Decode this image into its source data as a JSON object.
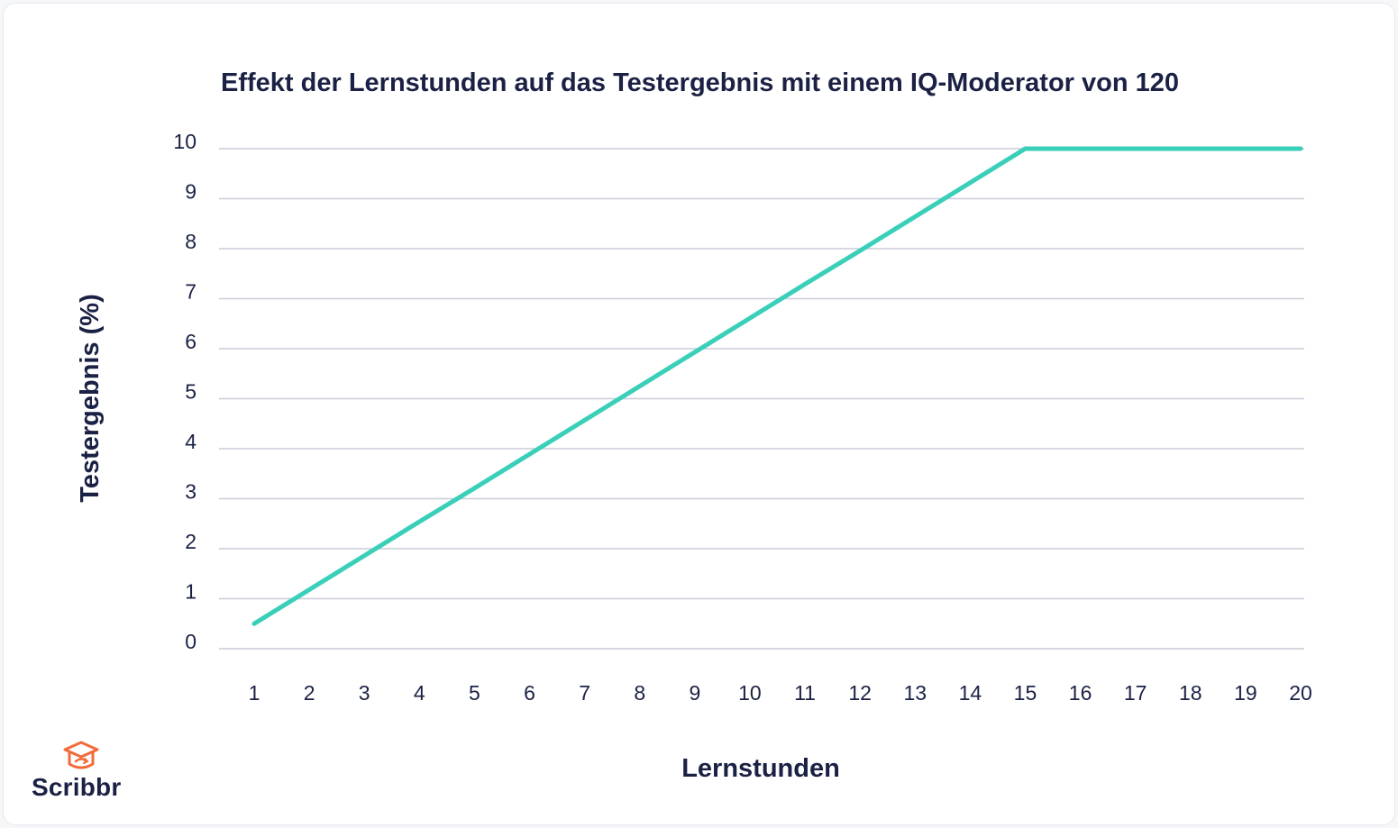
{
  "chart_data": {
    "type": "line",
    "title": "Effekt der Lernstunden auf das Testergebnis mit einem IQ-Moderator von 120",
    "xlabel": "Lernstunden",
    "ylabel": "Testergebnis (%)",
    "x": [
      1,
      2,
      3,
      4,
      5,
      6,
      7,
      8,
      9,
      10,
      11,
      12,
      13,
      14,
      15,
      16,
      17,
      18,
      19,
      20
    ],
    "series": [
      {
        "values": [
          0.5,
          1.18,
          1.86,
          2.54,
          3.21,
          3.89,
          4.57,
          5.25,
          5.93,
          6.61,
          7.29,
          7.96,
          8.64,
          9.32,
          10,
          10,
          10,
          10,
          10,
          10
        ]
      }
    ],
    "xticks": [
      "1",
      "2",
      "3",
      "4",
      "5",
      "6",
      "7",
      "8",
      "9",
      "10",
      "11",
      "12",
      "13",
      "14",
      "15",
      "16",
      "17",
      "18",
      "19",
      "20"
    ],
    "yticks": [
      "0",
      "1",
      "2",
      "3",
      "4",
      "5",
      "6",
      "7",
      "8",
      "9",
      "10"
    ],
    "xlim": [
      1,
      20
    ],
    "ylim": [
      0,
      10
    ],
    "grid": "horizontal",
    "colors": {
      "line": "#39cfb8",
      "grid": "#c9ccd9",
      "text": "#1b2144"
    }
  },
  "brand": {
    "name": "Scribbr",
    "icon": "graduation-cap-icon",
    "color": "#f26b3a"
  }
}
